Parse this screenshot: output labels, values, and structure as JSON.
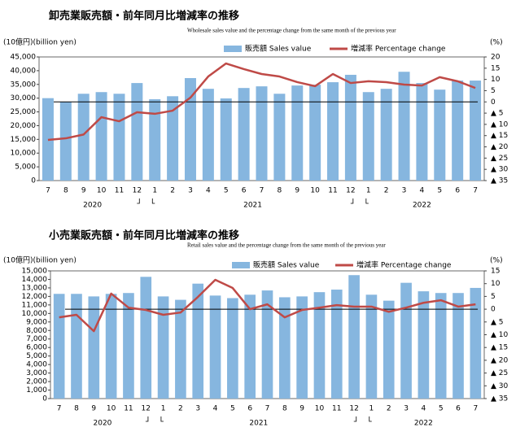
{
  "chart_data": [
    {
      "type": "combo",
      "title": "卸売業販売額・前年同月比増減率の推移",
      "subtitle": "Wholesale sales value and the percentage change from the same month of the previous year",
      "ylabel": "(10億円)(billion yen)",
      "y2label": "(%)",
      "categories": [
        "7",
        "8",
        "9",
        "10",
        "11",
        "12",
        "1",
        "2",
        "3",
        "4",
        "5",
        "6",
        "7",
        "8",
        "9",
        "10",
        "11",
        "12",
        "1",
        "2",
        "3",
        "4",
        "5",
        "6",
        "7"
      ],
      "category_years": [
        "2020",
        "2020",
        "2020",
        "2020",
        "2020",
        "2020",
        "2021",
        "2021",
        "2021",
        "2021",
        "2021",
        "2021",
        "2021",
        "2021",
        "2021",
        "2021",
        "2021",
        "2021",
        "2022",
        "2022",
        "2022",
        "2022",
        "2022",
        "2022",
        "2022"
      ],
      "series": [
        {
          "name": "販売額 Sales value",
          "type": "bar",
          "color": "#86b6df",
          "values": [
            30000,
            28700,
            31600,
            32200,
            31600,
            35500,
            29600,
            30700,
            37300,
            33400,
            29900,
            33700,
            34300,
            31600,
            34600,
            34900,
            35800,
            38500,
            32200,
            33400,
            39600,
            35500,
            33100,
            36400,
            36400
          ]
        },
        {
          "name": "増減率 Percentage change",
          "type": "line",
          "axis": "y2",
          "color": "#bf4a47",
          "values": [
            -16.9,
            -16.2,
            -14.5,
            -6.8,
            -8.6,
            -4.6,
            -5.3,
            -3.9,
            1.9,
            11.3,
            17.1,
            14.6,
            12.4,
            11.3,
            8.8,
            7,
            12.4,
            8.4,
            9.2,
            8.8,
            7.7,
            7.3,
            11,
            9.2,
            6.2
          ]
        }
      ],
      "ylim": [
        0,
        45000
      ],
      "yticks": [
        0,
        {
          "value": 5000,
          "label": "5,000"
        },
        {
          "value": 10000,
          "label": "10,000"
        },
        {
          "value": 15000,
          "label": "15,000"
        },
        {
          "value": 20000,
          "label": "20,000"
        },
        {
          "value": 25000,
          "label": "25,000"
        },
        {
          "value": 30000,
          "label": "30,000"
        },
        {
          "value": 35000,
          "label": "35,000"
        },
        {
          "value": 40000,
          "label": "40,000"
        },
        {
          "value": 45000,
          "label": "45,000"
        }
      ],
      "y2lim": [
        -35,
        20
      ],
      "y2ticks": [
        20,
        15,
        10,
        5,
        0,
        {
          "value": -5,
          "label": "▲ 5"
        },
        {
          "value": -10,
          "label": "▲ 10"
        },
        {
          "value": -15,
          "label": "▲ 15"
        },
        {
          "value": -20,
          "label": "▲ 20"
        },
        {
          "value": -25,
          "label": "▲ 25"
        },
        {
          "value": -30,
          "label": "▲ 30"
        },
        {
          "value": -35,
          "label": "▲ 35"
        }
      ]
    },
    {
      "type": "combo",
      "title": "小売業販売額・前年同月比増減率の推移",
      "subtitle": "Retail sales value and the percentage change from the same month of the previous year",
      "ylabel": "(10億円)(billion yen)",
      "y2label": "(%)",
      "categories": [
        "7",
        "8",
        "9",
        "10",
        "11",
        "12",
        "1",
        "2",
        "3",
        "4",
        "5",
        "6",
        "7",
        "8",
        "9",
        "10",
        "11",
        "12",
        "1",
        "2",
        "3",
        "4",
        "5",
        "6",
        "7"
      ],
      "category_years": [
        "2020",
        "2020",
        "2020",
        "2020",
        "2020",
        "2020",
        "2021",
        "2021",
        "2021",
        "2021",
        "2021",
        "2021",
        "2021",
        "2021",
        "2021",
        "2021",
        "2021",
        "2021",
        "2022",
        "2022",
        "2022",
        "2022",
        "2022",
        "2022",
        "2022"
      ],
      "series": [
        {
          "name": "販売額 Sales value",
          "type": "bar",
          "color": "#86b6df",
          "values": [
            12300,
            12300,
            12000,
            12300,
            12400,
            14300,
            12000,
            11600,
            13500,
            12100,
            11800,
            12200,
            12700,
            11900,
            12000,
            12500,
            12800,
            14500,
            12200,
            11500,
            13600,
            12600,
            12400,
            12400,
            13000
          ]
        },
        {
          "name": "増減率 Percentage change",
          "type": "line",
          "axis": "y2",
          "color": "#bf4a47",
          "values": [
            -3.2,
            -2.2,
            -8.6,
            6.1,
            0.6,
            -0.3,
            -2.2,
            -1.3,
            4.8,
            11.5,
            8.3,
            0,
            1.9,
            -3.2,
            -0.3,
            0.6,
            1.6,
            1,
            1,
            -1,
            0.6,
            2.5,
            3.5,
            1,
            1.9
          ]
        }
      ],
      "ylim": [
        0,
        15000
      ],
      "yticks": [
        0,
        {
          "value": 1000,
          "label": "1,000"
        },
        {
          "value": 2000,
          "label": "2,000"
        },
        {
          "value": 3000,
          "label": "3,000"
        },
        {
          "value": 4000,
          "label": "4,000"
        },
        {
          "value": 5000,
          "label": "5,000"
        },
        {
          "value": 6000,
          "label": "6,000"
        },
        {
          "value": 7000,
          "label": "7,000"
        },
        {
          "value": 8000,
          "label": "8,000"
        },
        {
          "value": 9000,
          "label": "9,000"
        },
        {
          "value": 10000,
          "label": "10,000"
        },
        {
          "value": 11000,
          "label": "11,000"
        },
        {
          "value": 12000,
          "label": "12,000"
        },
        {
          "value": 13000,
          "label": "13,000"
        },
        {
          "value": 14000,
          "label": "14,000"
        },
        {
          "value": 15000,
          "label": "15,000"
        }
      ],
      "y2lim": [
        -35,
        15
      ],
      "y2ticks": [
        15,
        10,
        5,
        0,
        {
          "value": -5,
          "label": "▲ 5"
        },
        {
          "value": -10,
          "label": "▲ 10"
        },
        {
          "value": -15,
          "label": "▲ 15"
        },
        {
          "value": -20,
          "label": "▲ 20"
        },
        {
          "value": -25,
          "label": "▲ 25"
        },
        {
          "value": -30,
          "label": "▲ 30"
        },
        {
          "value": -35,
          "label": "▲ 35"
        }
      ]
    }
  ]
}
